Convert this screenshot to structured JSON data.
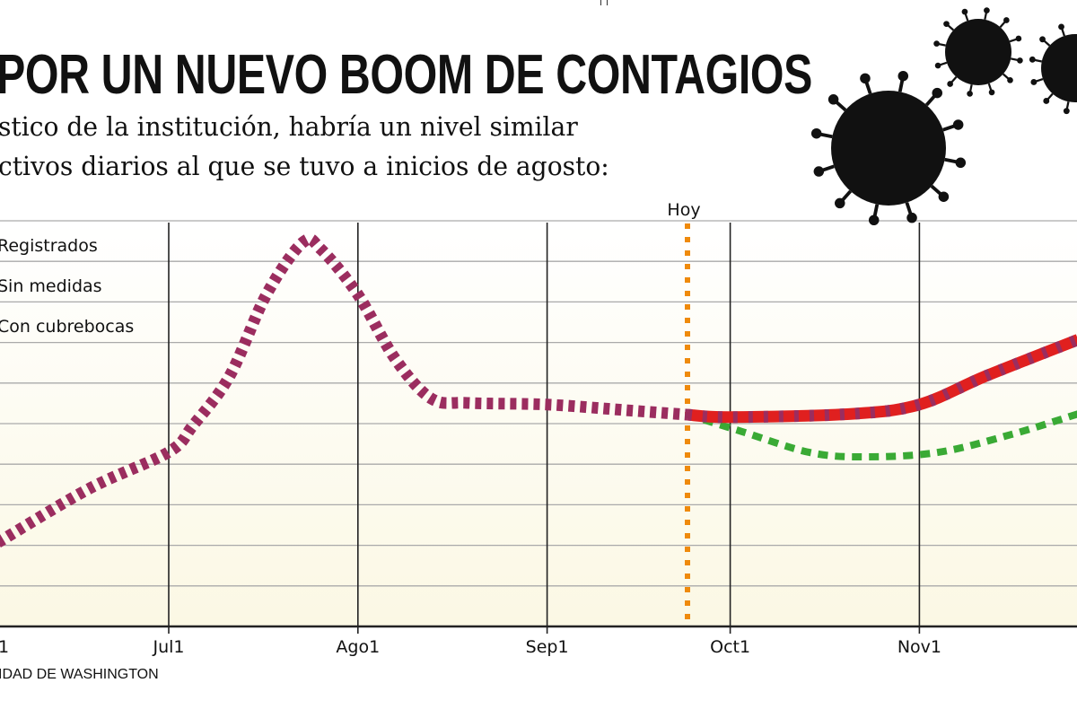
{
  "header": {
    "title": "POR UN NUEVO BOOM DE CONTAGIOS",
    "subtitle_line1": "stico de la institución, habría un nivel similar",
    "subtitle_line2": "ctivos diarios al que se tuvo a inicios de agosto:"
  },
  "source": "IDAD DE WASHINGTON",
  "decor": {
    "icon": "coronavirus-icon",
    "count": 3
  },
  "chart_data": {
    "type": "line",
    "title": "",
    "xlabel": "",
    "ylabel": "",
    "x_tick_labels": [
      "1",
      "Jul1",
      "Ago1",
      "Sep1",
      "Oct1",
      "Nov1"
    ],
    "x_tick_dates": [
      "06-01",
      "07-01",
      "08-01",
      "09-01",
      "10-01",
      "11-01"
    ],
    "grid": true,
    "legend_position": "top-left",
    "today": {
      "label": "Hoy",
      "date": "09-24",
      "color": "#ef8a0c"
    },
    "series": [
      {
        "name": "Registrados",
        "color": "#9b2d5f",
        "points": [
          [
            "06-03",
            2.07
          ],
          [
            "06-18",
            3.4
          ],
          [
            "07-01",
            4.3
          ],
          [
            "07-05",
            4.96
          ],
          [
            "07-11",
            6.18
          ],
          [
            "07-17",
            8.18
          ],
          [
            "07-23",
            9.47
          ],
          [
            "07-26",
            9.29
          ],
          [
            "08-01",
            8.18
          ],
          [
            "08-07",
            6.62
          ],
          [
            "08-13",
            5.62
          ],
          [
            "08-19",
            5.51
          ],
          [
            "09-01",
            5.47
          ],
          [
            "09-14",
            5.33
          ],
          [
            "09-24",
            5.22
          ]
        ]
      },
      {
        "name": "Sin medidas",
        "color": "#e0201f",
        "points": [
          [
            "09-24",
            5.22
          ],
          [
            "10-01",
            5.16
          ],
          [
            "10-21",
            5.24
          ],
          [
            "11-01",
            5.47
          ],
          [
            "11-12",
            6.18
          ],
          [
            "11-27",
            7.07
          ]
        ]
      },
      {
        "name": "Con cubrebocas",
        "color": "#3aaa35",
        "points": [
          [
            "09-24",
            5.22
          ],
          [
            "10-03",
            4.8
          ],
          [
            "10-14",
            4.29
          ],
          [
            "10-23",
            4.18
          ],
          [
            "11-04",
            4.29
          ],
          [
            "11-16",
            4.73
          ],
          [
            "11-27",
            5.24
          ]
        ]
      }
    ]
  }
}
